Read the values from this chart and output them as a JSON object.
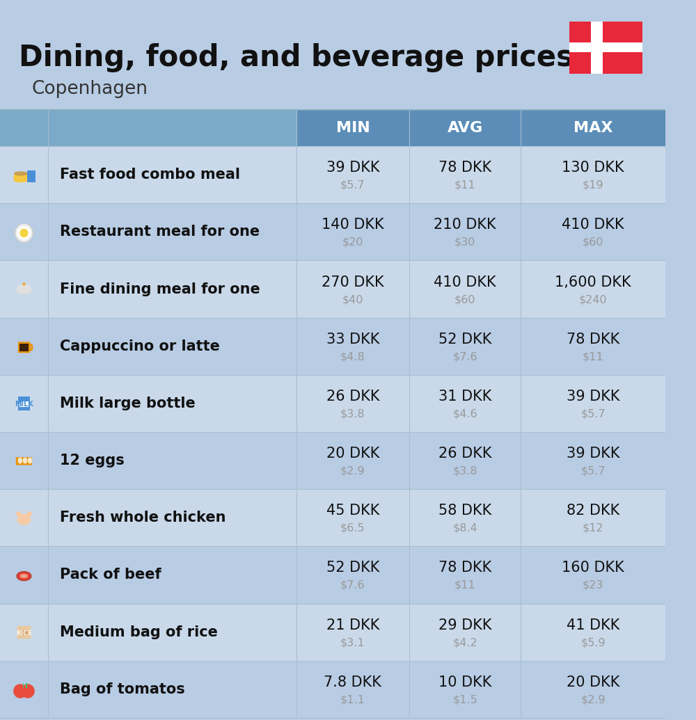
{
  "title": "Dining, food, and beverage prices",
  "subtitle": "Copenhagen",
  "background_color": "#b8cce4",
  "header_color": "#5b8db8",
  "header_text_color": "#ffffff",
  "row_color_odd": "#c9d9ea",
  "row_color_even": "#b8cce4",
  "label_color": "#111111",
  "value_color": "#111111",
  "sub_value_color": "#999999",
  "columns": [
    "MIN",
    "AVG",
    "MAX"
  ],
  "rows": [
    {
      "label": "Fast food combo meal",
      "min_dkk": "39 DKK",
      "min_usd": "$5.7",
      "avg_dkk": "78 DKK",
      "avg_usd": "$11",
      "max_dkk": "130 DKK",
      "max_usd": "$19"
    },
    {
      "label": "Restaurant meal for one",
      "min_dkk": "140 DKK",
      "min_usd": "$20",
      "avg_dkk": "210 DKK",
      "avg_usd": "$30",
      "max_dkk": "410 DKK",
      "max_usd": "$60"
    },
    {
      "label": "Fine dining meal for one",
      "min_dkk": "270 DKK",
      "min_usd": "$40",
      "avg_dkk": "410 DKK",
      "avg_usd": "$60",
      "max_dkk": "1,600 DKK",
      "max_usd": "$240"
    },
    {
      "label": "Cappuccino or latte",
      "min_dkk": "33 DKK",
      "min_usd": "$4.8",
      "avg_dkk": "52 DKK",
      "avg_usd": "$7.6",
      "max_dkk": "78 DKK",
      "max_usd": "$11"
    },
    {
      "label": "Milk large bottle",
      "min_dkk": "26 DKK",
      "min_usd": "$3.8",
      "avg_dkk": "31 DKK",
      "avg_usd": "$4.6",
      "max_dkk": "39 DKK",
      "max_usd": "$5.7"
    },
    {
      "label": "12 eggs",
      "min_dkk": "20 DKK",
      "min_usd": "$2.9",
      "avg_dkk": "26 DKK",
      "avg_usd": "$3.8",
      "max_dkk": "39 DKK",
      "max_usd": "$5.7"
    },
    {
      "label": "Fresh whole chicken",
      "min_dkk": "45 DKK",
      "min_usd": "$6.5",
      "avg_dkk": "58 DKK",
      "avg_usd": "$8.4",
      "max_dkk": "82 DKK",
      "max_usd": "$12"
    },
    {
      "label": "Pack of beef",
      "min_dkk": "52 DKK",
      "min_usd": "$7.6",
      "avg_dkk": "78 DKK",
      "avg_usd": "$11",
      "max_dkk": "160 DKK",
      "max_usd": "$23"
    },
    {
      "label": "Medium bag of rice",
      "min_dkk": "21 DKK",
      "min_usd": "$3.1",
      "avg_dkk": "29 DKK",
      "avg_usd": "$4.2",
      "max_dkk": "41 DKK",
      "max_usd": "$5.9"
    },
    {
      "label": "Bag of tomatos",
      "min_dkk": "7.8 DKK",
      "min_usd": "$1.1",
      "avg_dkk": "10 DKK",
      "avg_usd": "$1.5",
      "max_dkk": "20 DKK",
      "max_usd": "$2.9"
    }
  ],
  "flag_red": "#e8273a",
  "flag_white": "#ffffff",
  "icon_colors": [
    [
      "#f5a623",
      "#4a90d9",
      "#e74c3c"
    ],
    [
      "#f5a623",
      "#e74c3c",
      "#2ecc71"
    ],
    [
      "#cccccc",
      "#e8e8e8",
      "#f5a623"
    ],
    [
      "#f5a623",
      "#4a3728",
      "#ffffff"
    ],
    [
      "#4a90d9",
      "#ffffff",
      "#e74c3c"
    ],
    [
      "#f5a623",
      "#e8d5b0",
      "#ffffff"
    ],
    [
      "#f5cba7",
      "#e8a87c",
      "#ffffff"
    ],
    [
      "#e74c3c",
      "#c0392b",
      "#f5a623"
    ],
    [
      "#e8c9a0",
      "#d4a574",
      "#e74c3c"
    ],
    [
      "#e74c3c",
      "#c0392b",
      "#f5d5d5"
    ]
  ]
}
